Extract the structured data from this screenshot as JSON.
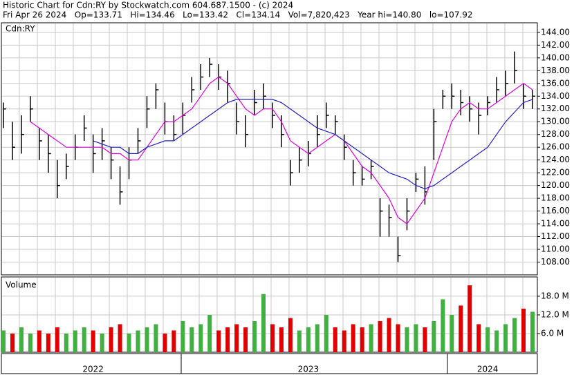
{
  "chart_data": [
    {
      "type": "ohlc",
      "title": "Historic Chart for Cdn:RY by Stockwatch.com 604.687.1500 - (c) 2024",
      "subtitle": "Fri Apr 26 2024   Op=133.71   Hi=134.46   Lo=133.42   Cl=134.14   Vol=7,820,423   Year hi=140.80   lo=107.92",
      "panel_label": "Cdn:RY",
      "categories": [
        null,
        null,
        null,
        null,
        null,
        null,
        null,
        null,
        null,
        null,
        "2022",
        null,
        null,
        null,
        null,
        null,
        null,
        null,
        null,
        null,
        null,
        null,
        null,
        null,
        null,
        null,
        null,
        null,
        null,
        null,
        null,
        null,
        null,
        null,
        "2023",
        null,
        null,
        null,
        null,
        null,
        null,
        null,
        null,
        null,
        null,
        null,
        null,
        null,
        null,
        null,
        null,
        null,
        null,
        null,
        "2024",
        null,
        null,
        null,
        null,
        null
      ],
      "high": [
        133,
        130,
        131,
        134,
        129,
        128,
        124,
        125,
        128,
        131,
        128,
        129,
        126,
        123,
        126,
        129,
        134,
        136,
        133,
        131,
        133,
        137,
        139,
        140,
        139,
        138,
        133,
        131,
        135,
        136,
        133,
        131,
        124,
        126,
        127,
        131,
        133,
        131,
        128,
        124,
        123,
        124,
        118,
        117,
        112,
        118,
        122,
        123,
        132,
        135,
        136,
        135,
        134,
        133,
        134,
        137,
        138,
        141,
        136,
        135
      ],
      "low": [
        129,
        124,
        125,
        130,
        124,
        122,
        118,
        121,
        124,
        127,
        122,
        124,
        121,
        117,
        121,
        125,
        129,
        132,
        128,
        127,
        128,
        133,
        135,
        137,
        135,
        133,
        128,
        126,
        131,
        132,
        129,
        126,
        120,
        122,
        123,
        126,
        129,
        128,
        124,
        120,
        120,
        121,
        112,
        112,
        108,
        113,
        119,
        117,
        124,
        132,
        132,
        131,
        130,
        128,
        131,
        133,
        134,
        136,
        132,
        132
      ],
      "close": [
        132,
        126,
        128,
        132,
        127,
        125,
        120,
        123,
        126,
        129,
        125,
        127,
        124,
        119,
        124,
        127,
        132,
        135,
        130,
        128,
        131,
        135,
        137,
        139,
        137,
        136,
        130,
        128,
        133,
        134,
        131,
        128,
        122,
        124,
        125,
        128,
        131,
        130,
        126,
        122,
        121,
        123,
        116,
        115,
        109,
        116,
        121,
        119,
        130,
        134,
        134,
        133,
        132,
        131,
        133,
        135,
        136,
        138,
        134,
        134
      ],
      "color": "#000000",
      "lines": [
        {
          "color": "#e000e0",
          "values": [
            null,
            null,
            null,
            130,
            129,
            128,
            127,
            126,
            126,
            126,
            126,
            126,
            125,
            125,
            124,
            124,
            126,
            128,
            130,
            130,
            131,
            132,
            134,
            136,
            137,
            136,
            134,
            132,
            131,
            132,
            132,
            130,
            127,
            126,
            125,
            126,
            127,
            128,
            127,
            125,
            123,
            122,
            120,
            118,
            115,
            114,
            116,
            118,
            122,
            126,
            130,
            132,
            133,
            132,
            132,
            133,
            134,
            135,
            136,
            135
          ]
        },
        {
          "color": "#2020c0",
          "values": [
            null,
            null,
            null,
            null,
            null,
            null,
            null,
            null,
            null,
            null,
            127,
            126.5,
            126,
            126,
            125,
            125,
            126,
            126.5,
            127,
            127,
            128,
            129,
            130,
            131,
            132,
            133,
            133.5,
            133.5,
            133.5,
            133.5,
            133.5,
            133,
            132,
            131,
            130,
            129,
            128.5,
            128,
            127,
            126,
            125,
            124,
            123,
            122,
            121.5,
            121,
            120,
            119.5,
            120,
            121,
            122,
            123,
            124,
            125,
            126,
            128,
            130,
            131.5,
            133,
            133.5
          ]
        }
      ],
      "ylim": [
        106,
        145.5
      ],
      "yticks": [
        {
          "value": 108,
          "label": "108.00"
        },
        {
          "value": 110,
          "label": "110.00"
        },
        {
          "value": 112,
          "label": "112.00"
        },
        {
          "value": 114,
          "label": "114.00"
        },
        {
          "value": 116,
          "label": "116.00"
        },
        {
          "value": 118,
          "label": "118.00"
        },
        {
          "value": 120,
          "label": "120.00"
        },
        {
          "value": 122,
          "label": "122.00"
        },
        {
          "value": 124,
          "label": "124.00"
        },
        {
          "value": 126,
          "label": "126.00"
        },
        {
          "value": 128,
          "label": "128.00"
        },
        {
          "value": 130,
          "label": "130.00"
        },
        {
          "value": 132,
          "label": "132.00"
        },
        {
          "value": 134,
          "label": "134.00"
        },
        {
          "value": 136,
          "label": "136.00"
        },
        {
          "value": 138,
          "label": "138.00"
        },
        {
          "value": 140,
          "label": "140.00"
        },
        {
          "value": 142,
          "label": "142.00"
        },
        {
          "value": 144,
          "label": "144.00"
        }
      ],
      "grid": true
    },
    {
      "type": "volume",
      "panel_label": "Volume",
      "values": [
        7,
        6,
        8,
        6,
        7,
        6,
        8,
        6,
        7,
        8,
        7,
        6,
        8,
        9,
        6,
        7,
        8,
        9,
        6,
        7,
        10,
        8,
        9,
        12,
        7,
        8,
        9,
        8,
        10,
        18.7,
        9,
        8,
        11,
        7,
        8,
        9,
        12,
        8,
        7,
        9,
        8,
        9,
        10,
        11,
        9,
        8,
        9,
        8,
        10,
        17,
        12,
        15,
        21.5,
        9,
        8,
        7,
        9,
        11,
        14,
        13
      ],
      "up_color": "#40b040",
      "down_color": "#e00000",
      "ylim": [
        0,
        24.2
      ],
      "yticks": [
        {
          "value": 6,
          "label": "6.0 M"
        },
        {
          "value": 12,
          "label": "12.0 M"
        },
        {
          "value": 18,
          "label": "18.0 M"
        }
      ],
      "grid": true
    }
  ]
}
